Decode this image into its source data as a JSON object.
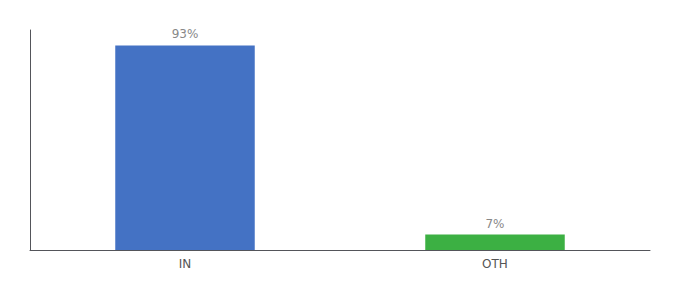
{
  "chart_data": {
    "type": "bar",
    "categories": [
      "IN",
      "OTH"
    ],
    "values": [
      93,
      7
    ],
    "value_labels": [
      "93%",
      "7%"
    ],
    "data_labels": true,
    "colors": [
      "#4472c4",
      "#3cb043"
    ],
    "ylim": [
      0,
      100
    ],
    "grid": false,
    "tick_labels": "x"
  }
}
